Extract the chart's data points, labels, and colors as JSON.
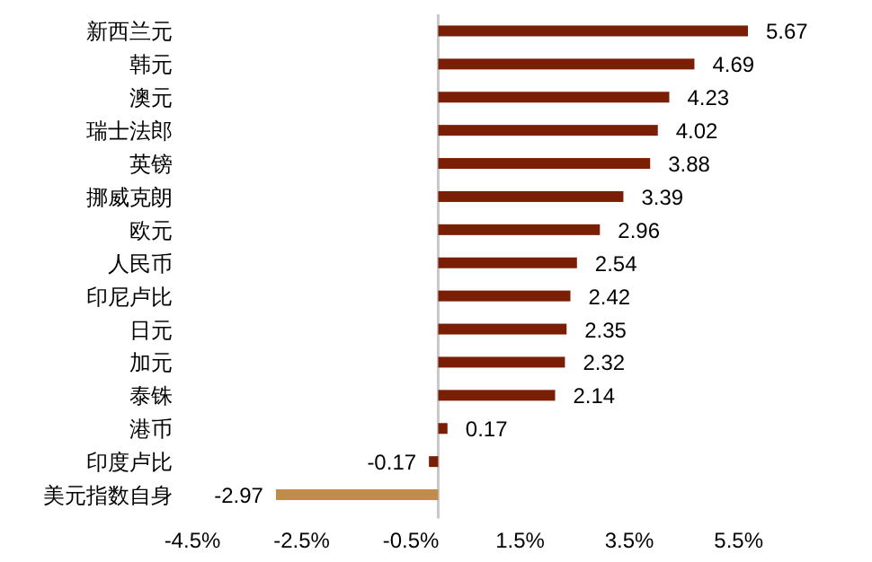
{
  "chart_data": {
    "type": "bar",
    "orientation": "horizontal",
    "categories": [
      "新西兰元",
      "韩元",
      "澳元",
      "瑞士法郎",
      "英镑",
      "挪威克朗",
      "欧元",
      "人民币",
      "印尼卢比",
      "日元",
      "加元",
      "泰铢",
      "港币",
      "印度卢比",
      "美元指数自身"
    ],
    "values": [
      5.67,
      4.69,
      4.23,
      4.02,
      3.88,
      3.39,
      2.96,
      2.54,
      2.42,
      2.35,
      2.32,
      2.14,
      0.17,
      -0.17,
      -2.97
    ],
    "colors": [
      "#7a1f05",
      "#7a1f05",
      "#7a1f05",
      "#7a1f05",
      "#7a1f05",
      "#7a1f05",
      "#7a1f05",
      "#7a1f05",
      "#7a1f05",
      "#7a1f05",
      "#7a1f05",
      "#7a1f05",
      "#7a1f05",
      "#7a1f05",
      "#c08c4c"
    ],
    "xlim": [
      -4.5,
      5.67
    ],
    "xticks": [
      {
        "value": -4.5,
        "label": "-4.5%"
      },
      {
        "value": -2.5,
        "label": "-2.5%"
      },
      {
        "value": -0.5,
        "label": "-0.5%"
      },
      {
        "value": 1.5,
        "label": "1.5%"
      },
      {
        "value": 3.5,
        "label": "3.5%"
      },
      {
        "value": 5.5,
        "label": "5.5%"
      }
    ],
    "data_labels": true
  }
}
